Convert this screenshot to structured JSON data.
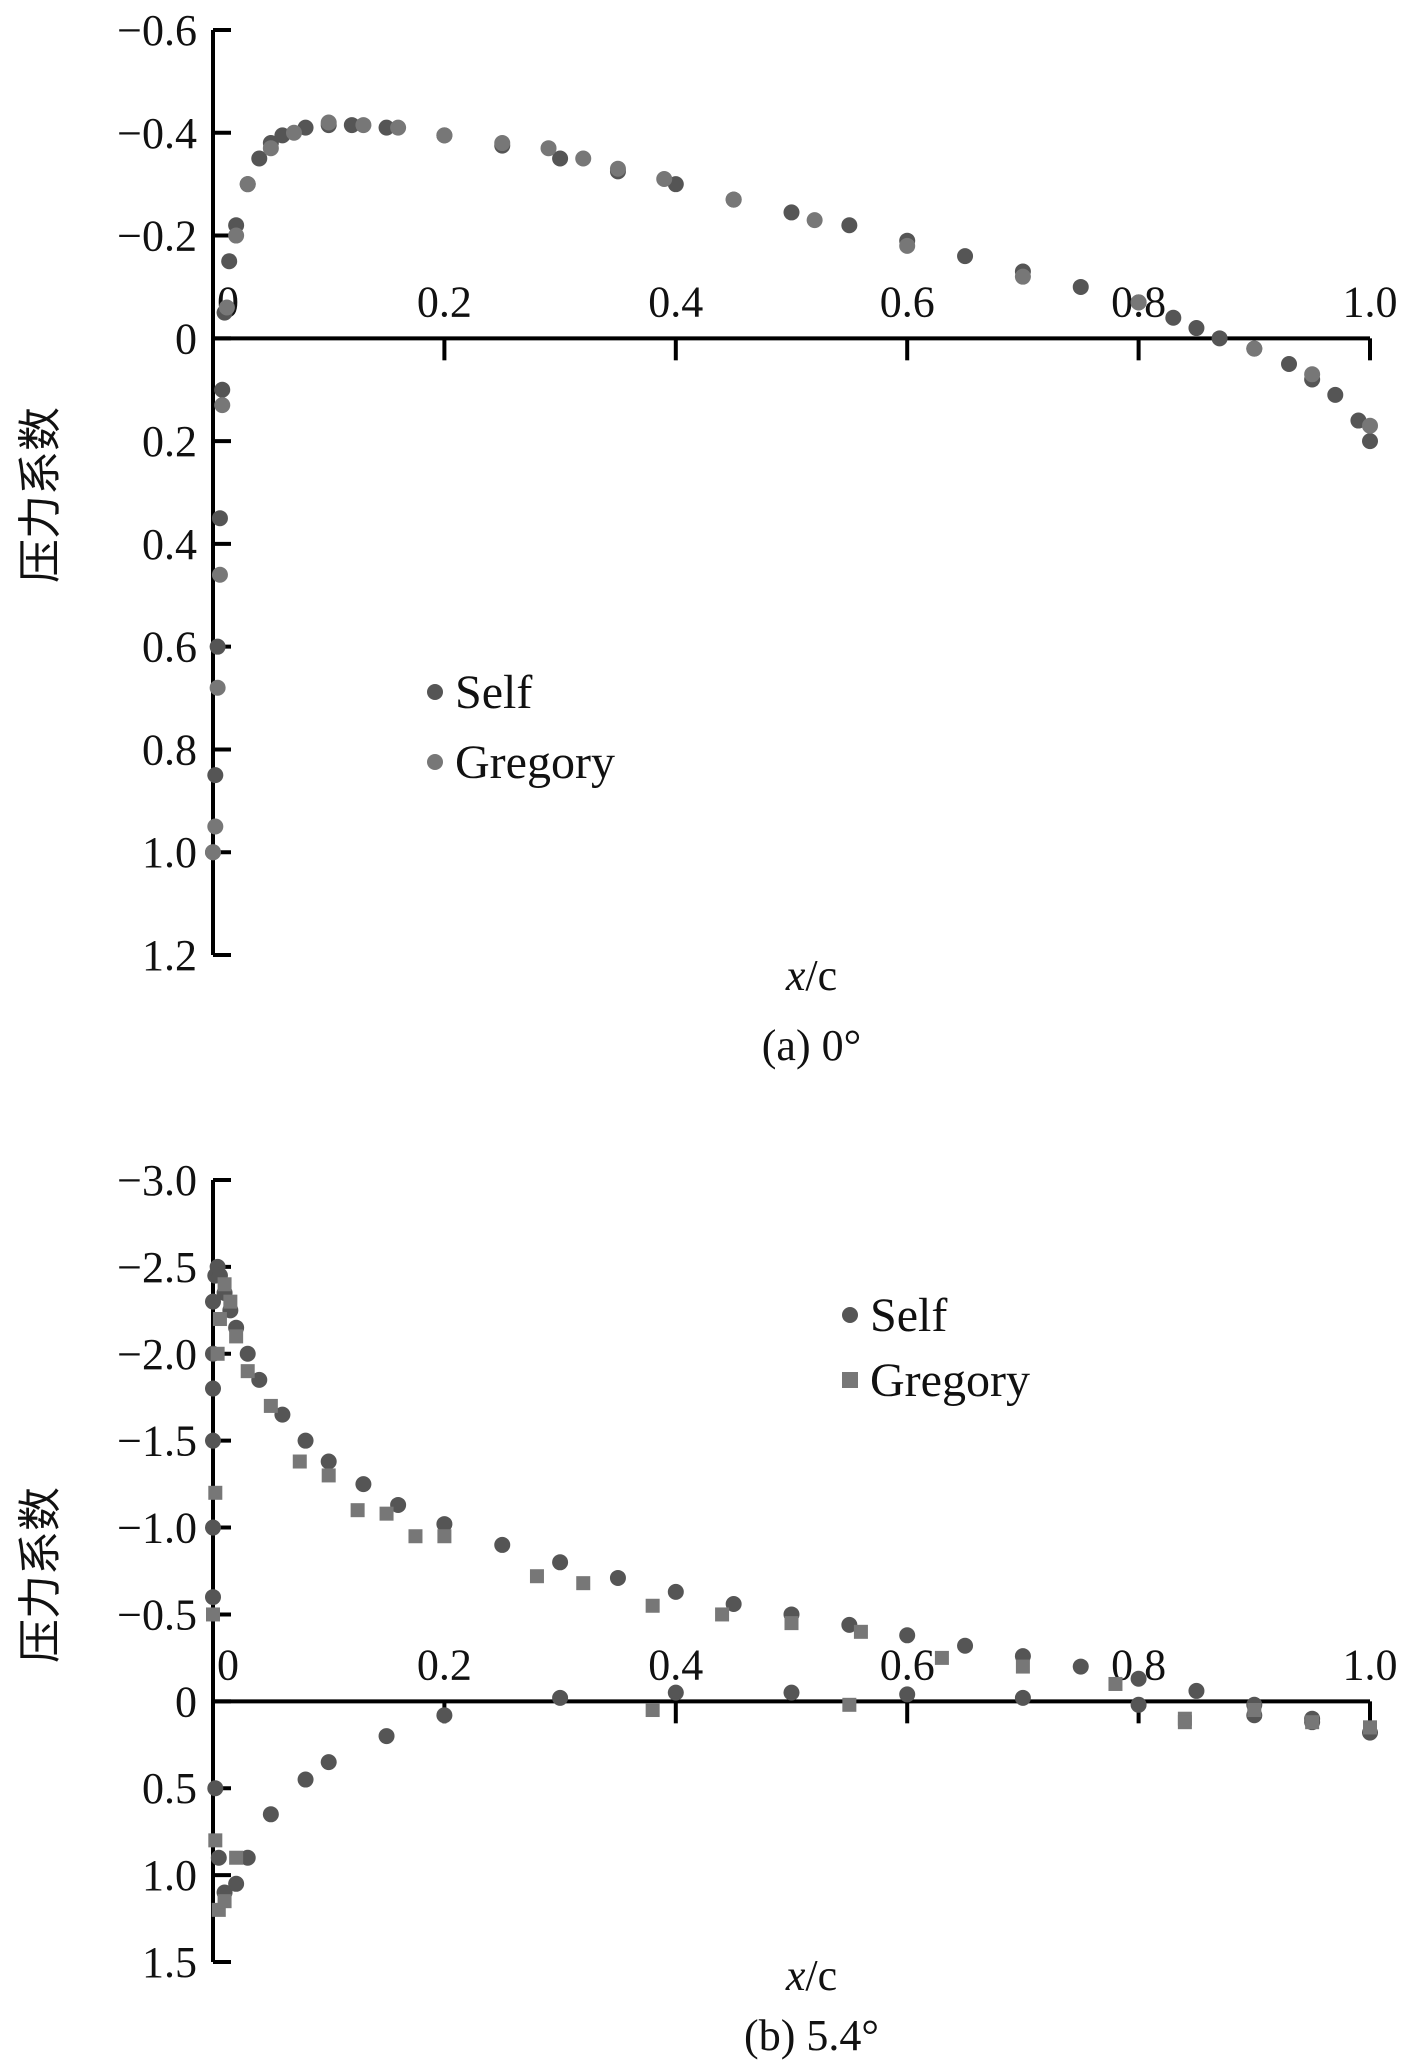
{
  "chart_data": [
    {
      "type": "scatter",
      "caption": "(a) 0°",
      "xlabel_italic": "x",
      "xlabel_rest": "/c",
      "ylabel": "压力系数",
      "xlim": [
        0,
        1.0
      ],
      "ylim": [
        -0.6,
        1.2
      ],
      "y_inverted": true,
      "x_ticks": [
        "0",
        "0.2",
        "0.4",
        "0.6",
        "0.8",
        "1.0"
      ],
      "y_ticks": [
        "−0.6",
        "−0.4",
        "−0.2",
        "0",
        "0.2",
        "0.4",
        "0.6",
        "0.8",
        "1.0",
        "1.2"
      ],
      "legend_position": "center-left",
      "series": [
        {
          "name": "Self",
          "marker": "circle",
          "color": "#555555",
          "x": [
            0.0,
            0.002,
            0.004,
            0.006,
            0.008,
            0.01,
            0.014,
            0.02,
            0.03,
            0.04,
            0.05,
            0.06,
            0.08,
            0.1,
            0.12,
            0.15,
            0.2,
            0.25,
            0.3,
            0.35,
            0.4,
            0.45,
            0.5,
            0.55,
            0.6,
            0.65,
            0.7,
            0.75,
            0.8,
            0.83,
            0.85,
            0.87,
            0.9,
            0.93,
            0.95,
            0.97,
            0.99,
            1.0
          ],
          "y": [
            1.0,
            0.85,
            0.6,
            0.35,
            0.1,
            -0.05,
            -0.15,
            -0.22,
            -0.3,
            -0.35,
            -0.38,
            -0.395,
            -0.41,
            -0.415,
            -0.415,
            -0.41,
            -0.395,
            -0.375,
            -0.35,
            -0.325,
            -0.3,
            -0.27,
            -0.245,
            -0.22,
            -0.19,
            -0.16,
            -0.13,
            -0.1,
            -0.07,
            -0.04,
            -0.02,
            0.0,
            0.02,
            0.05,
            0.08,
            0.11,
            0.16,
            0.2
          ]
        },
        {
          "name": "Gregory",
          "marker": "circle",
          "color": "#777777",
          "x": [
            0.0,
            0.002,
            0.004,
            0.006,
            0.008,
            0.012,
            0.02,
            0.03,
            0.05,
            0.07,
            0.1,
            0.13,
            0.16,
            0.2,
            0.25,
            0.29,
            0.32,
            0.35,
            0.39,
            0.45,
            0.52,
            0.6,
            0.7,
            0.8,
            0.9,
            0.95,
            1.0
          ],
          "y": [
            1.0,
            0.95,
            0.68,
            0.46,
            0.13,
            -0.06,
            -0.2,
            -0.3,
            -0.37,
            -0.4,
            -0.42,
            -0.415,
            -0.41,
            -0.395,
            -0.38,
            -0.37,
            -0.35,
            -0.33,
            -0.31,
            -0.27,
            -0.23,
            -0.18,
            -0.12,
            -0.07,
            0.02,
            0.07,
            0.17
          ]
        }
      ]
    },
    {
      "type": "scatter",
      "caption": "(b) 5.4°",
      "xlabel_italic": "x",
      "xlabel_rest": "/c",
      "ylabel": "压力系数",
      "xlim": [
        0,
        1.0
      ],
      "ylim": [
        -3.0,
        1.5
      ],
      "y_inverted": true,
      "x_ticks": [
        "0",
        "0.2",
        "0.4",
        "0.6",
        "0.8",
        "1.0"
      ],
      "y_ticks": [
        "−3.0",
        "−2.5",
        "−2.0",
        "−1.5",
        "−1.0",
        "−0.5",
        "0",
        "0.5",
        "1.0",
        "1.5"
      ],
      "legend_position": "top-center",
      "series": [
        {
          "name": "Self",
          "marker": "circle",
          "color": "#555555",
          "x": [
            0.0,
            0.0,
            0.0,
            0.0,
            0.0,
            0.0,
            0.002,
            0.004,
            0.006,
            0.01,
            0.015,
            0.02,
            0.03,
            0.04,
            0.06,
            0.08,
            0.1,
            0.13,
            0.16,
            0.2,
            0.25,
            0.3,
            0.35,
            0.4,
            0.45,
            0.5,
            0.55,
            0.6,
            0.65,
            0.7,
            0.75,
            0.8,
            0.85,
            0.9,
            0.95,
            1.0,
            0.002,
            0.005,
            0.01,
            0.02,
            0.03,
            0.05,
            0.08,
            0.1,
            0.15,
            0.2,
            0.3,
            0.4,
            0.5,
            0.6,
            0.7,
            0.8,
            0.9,
            0.95
          ],
          "y": [
            -0.6,
            -1.0,
            -1.5,
            -1.8,
            -2.0,
            -2.3,
            -2.45,
            -2.5,
            -2.45,
            -2.35,
            -2.25,
            -2.15,
            -2.0,
            -1.85,
            -1.65,
            -1.5,
            -1.38,
            -1.25,
            -1.13,
            -1.02,
            -0.9,
            -0.8,
            -0.71,
            -0.63,
            -0.56,
            -0.5,
            -0.44,
            -0.38,
            -0.32,
            -0.26,
            -0.2,
            -0.13,
            -0.06,
            0.02,
            0.1,
            0.18,
            0.5,
            0.9,
            1.1,
            1.05,
            0.9,
            0.65,
            0.45,
            0.35,
            0.2,
            0.08,
            -0.02,
            -0.05,
            -0.05,
            -0.04,
            -0.02,
            0.02,
            0.08,
            0.12
          ]
        },
        {
          "name": "Gregory",
          "marker": "square",
          "color": "#777777",
          "x": [
            0.0,
            0.002,
            0.004,
            0.006,
            0.01,
            0.015,
            0.02,
            0.03,
            0.05,
            0.075,
            0.1,
            0.125,
            0.15,
            0.175,
            0.2,
            0.28,
            0.32,
            0.38,
            0.44,
            0.5,
            0.56,
            0.63,
            0.7,
            0.78,
            0.84,
            0.9,
            0.95,
            1.0,
            0.002,
            0.005,
            0.01,
            0.02,
            0.38,
            0.55,
            0.84,
            1.0
          ],
          "y": [
            -0.5,
            -1.2,
            -2.0,
            -2.2,
            -2.4,
            -2.3,
            -2.1,
            -1.9,
            -1.7,
            -1.38,
            -1.3,
            -1.1,
            -1.08,
            -0.95,
            -0.95,
            -0.72,
            -0.68,
            -0.55,
            -0.5,
            -0.45,
            -0.4,
            -0.25,
            -0.2,
            -0.1,
            0.1,
            0.05,
            0.12,
            0.15,
            0.8,
            1.2,
            1.15,
            0.9,
            0.05,
            0.02,
            0.12,
            0.15
          ]
        }
      ]
    }
  ]
}
